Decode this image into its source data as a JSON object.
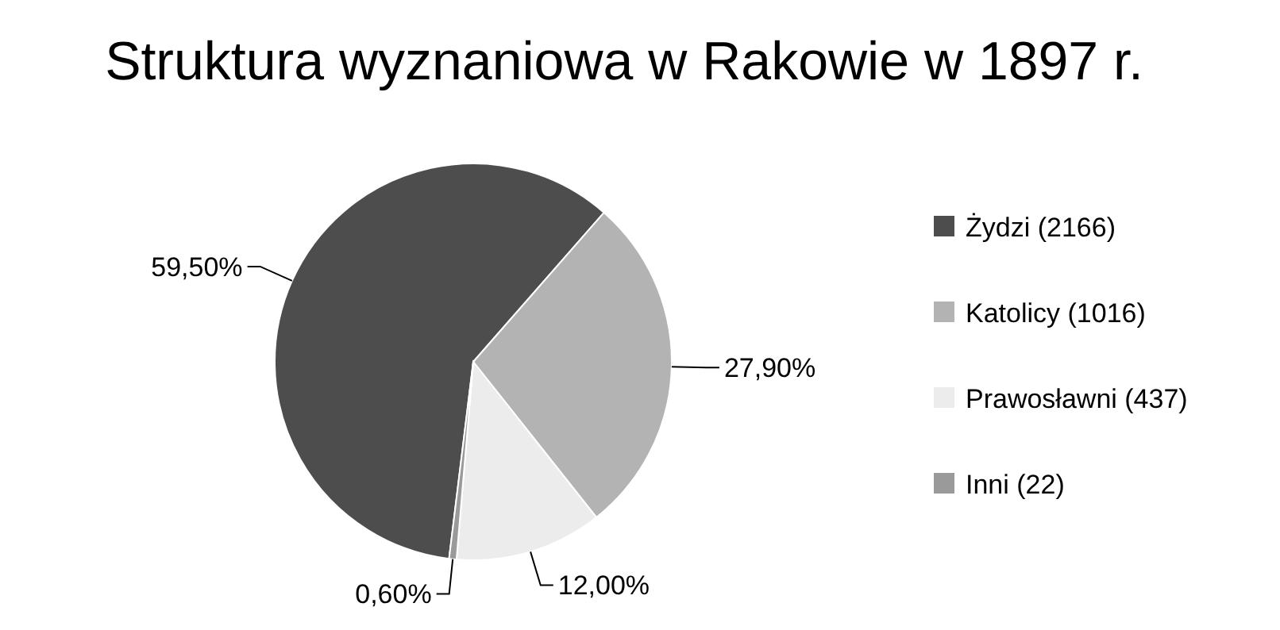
{
  "chart_data": {
    "type": "pie",
    "title": "Struktura wyznaniowa w Rakowie w 1897 r.",
    "categories": [
      "Żydzi (2166)",
      "Katolicy (1016)",
      "Prawosławni (437)",
      "Inni (22)"
    ],
    "values": [
      59.5,
      27.9,
      12.0,
      0.6
    ],
    "colors": [
      "#4d4d4d",
      "#b3b3b3",
      "#ececec",
      "#9a9a9a"
    ],
    "value_labels": [
      "59,50%",
      "27,90%",
      "12,00%",
      "0,60%"
    ],
    "legend": "right"
  }
}
